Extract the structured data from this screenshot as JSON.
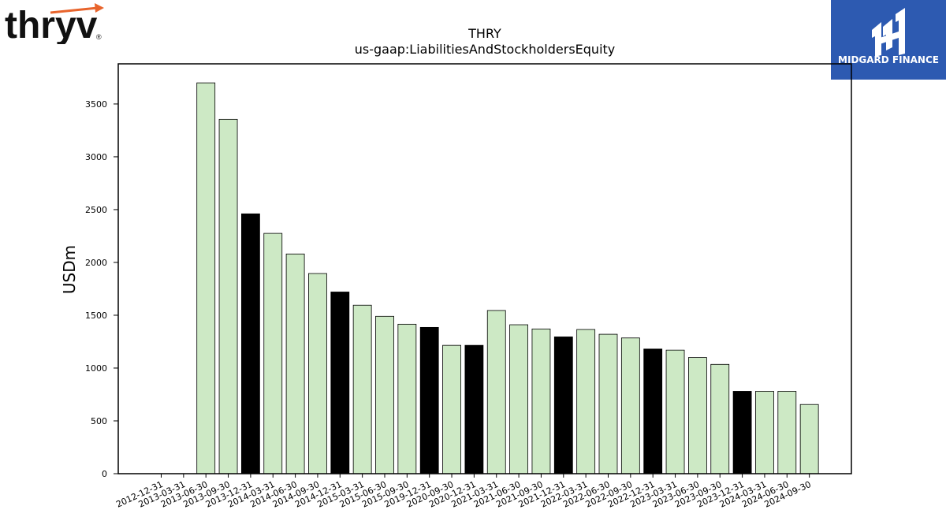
{
  "branding": {
    "left_logo_text": "thryv",
    "left_logo_mark": "®",
    "right_logo_text": "MIDGARD FINANCE",
    "right_logo_bg": "#2d5ab1"
  },
  "chart_data": {
    "type": "bar",
    "title": "THRY",
    "subtitle": "us-gaap:LiabilitiesAndStockholdersEquity",
    "ylabel": "USDm",
    "xlabel": "",
    "ylim": [
      0,
      3880
    ],
    "yticks": [
      0,
      500,
      1000,
      1500,
      2000,
      2500,
      3000,
      3500
    ],
    "grid": false,
    "categories": [
      "2012-12-31",
      "2013-03-31",
      "2013-06-30",
      "2013-09-30",
      "2013-12-31",
      "2014-03-31",
      "2014-06-30",
      "2014-09-30",
      "2014-12-31",
      "2015-03-31",
      "2015-06-30",
      "2015-09-30",
      "2019-12-31",
      "2020-09-30",
      "2020-12-31",
      "2021-03-31",
      "2021-06-30",
      "2021-09-30",
      "2021-12-31",
      "2022-03-31",
      "2022-06-30",
      "2022-09-30",
      "2022-12-31",
      "2023-03-31",
      "2023-06-30",
      "2023-09-30",
      "2023-12-31",
      "2024-03-31",
      "2024-06-30",
      "2024-09-30"
    ],
    "values": [
      null,
      null,
      3700,
      3355,
      2460,
      2275,
      2080,
      1895,
      1720,
      1595,
      1490,
      1415,
      1385,
      1215,
      1215,
      1545,
      1410,
      1370,
      1295,
      1365,
      1320,
      1285,
      1180,
      1170,
      1100,
      1035,
      780,
      780,
      780,
      655
    ],
    "year_end": [
      true,
      false,
      false,
      false,
      true,
      false,
      false,
      false,
      true,
      false,
      false,
      false,
      true,
      false,
      true,
      false,
      false,
      false,
      true,
      false,
      false,
      false,
      true,
      false,
      false,
      false,
      true,
      false,
      false,
      false
    ],
    "colors": {
      "quarter": "#cde9c5",
      "year_end": "#000000",
      "edge": "#000000"
    }
  }
}
